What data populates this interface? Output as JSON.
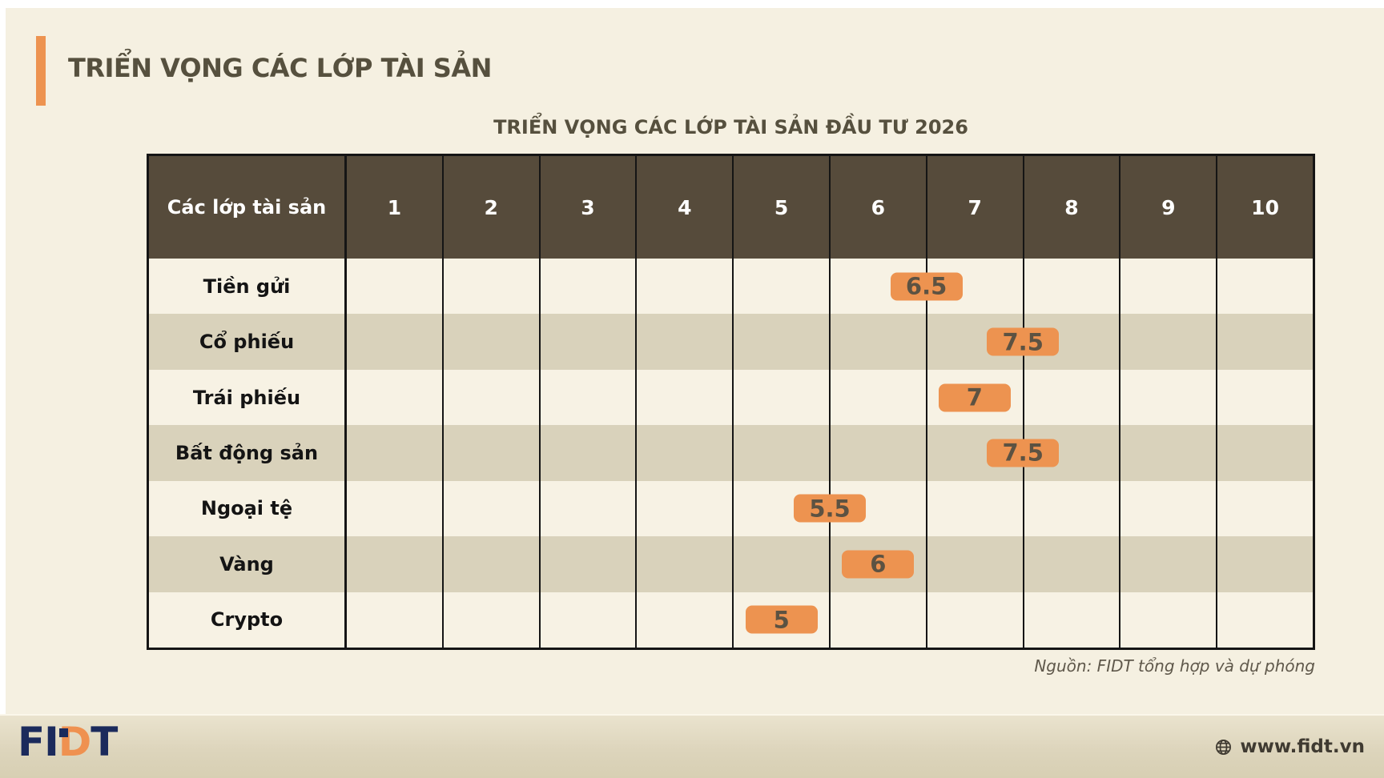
{
  "slide": {
    "title": "TRIỂN VỌNG CÁC LỚP TÀI SẢN"
  },
  "chart_data": {
    "type": "table",
    "title": "TRIỂN VỌNG CÁC LỚP TÀI SẢN ĐẦU TƯ 2026",
    "corner_header": "Các lớp tài sản",
    "scale_columns": [
      "1",
      "2",
      "3",
      "4",
      "5",
      "6",
      "7",
      "8",
      "9",
      "10"
    ],
    "categories": [
      "Tiền gửi",
      "Cổ phiếu",
      "Trái phiếu",
      "Bất động sản",
      "Ngoại tệ",
      "Vàng",
      "Crypto"
    ],
    "values": [
      6.5,
      7.5,
      7,
      7.5,
      5.5,
      6,
      5
    ],
    "value_axis_range": [
      0.5,
      10.5
    ],
    "legend": "none",
    "grid": "vertical-column-lines"
  },
  "source_note": "Nguồn: FIDT tổng hợp và dự phóng",
  "footer": {
    "logo_part_fi": "FI",
    "logo_part_d": "D",
    "logo_part_t": "T",
    "website": "www.fidt.vn"
  },
  "colors": {
    "page_bg": "#F5F0E1",
    "accent_orange": "#ED9350",
    "title_text": "#56503E",
    "header_bg": "#564B3B",
    "row_bg": "#F7F2E4",
    "row_alt_bg": "#D9D2BB",
    "badge_bg": "#ED9350",
    "badge_text": "#5C5242",
    "logo_navy": "#1B2A5C",
    "logo_orange": "#EF9150"
  }
}
